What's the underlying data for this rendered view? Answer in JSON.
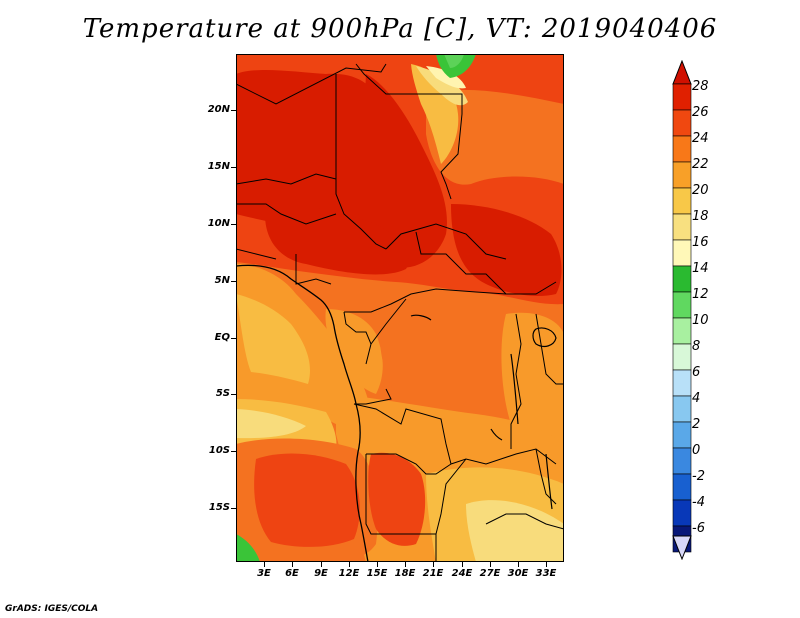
{
  "title": "Temperature at 900hPa [C], VT: 2019040406",
  "credit": "GrADS: IGES/COLA",
  "lat_labels": [
    "20N",
    "15N",
    "10N",
    "5N",
    "EQ",
    "5S",
    "10S",
    "15S"
  ],
  "lon_labels": [
    "3E",
    "6E",
    "9E",
    "12E",
    "15E",
    "18E",
    "21E",
    "24E",
    "27E",
    "30E",
    "33E"
  ],
  "colorbar": {
    "labels": [
      "28",
      "26",
      "24",
      "22",
      "20",
      "18",
      "16",
      "14",
      "12",
      "10",
      "8",
      "6",
      "4",
      "2",
      "0",
      "-2",
      "-4",
      "-6"
    ],
    "colors": [
      "#e02000",
      "#f04810",
      "#f87818",
      "#f8a028",
      "#f8c848",
      "#f8e080",
      "#fff8b8",
      "#2aba30",
      "#60d860",
      "#a8f0a0",
      "#d8f8d8",
      "#b8e0f8",
      "#88c8f0",
      "#5aa8e8",
      "#3a88e0",
      "#1860d0",
      "#0838b8",
      "#081878"
    ],
    "top_arrow_color": "#d01000",
    "bottom_arrow_color": "#d8d8f8"
  },
  "field_colors": {
    "c28": "#d81c00",
    "c26": "#ee4412",
    "c24": "#f47220",
    "c22": "#f89a2a",
    "c20": "#f8bc42",
    "c18": "#f8dc7c",
    "c16": "#fff4b0",
    "c14": "#3ac438",
    "c12": "#5cd258"
  }
}
